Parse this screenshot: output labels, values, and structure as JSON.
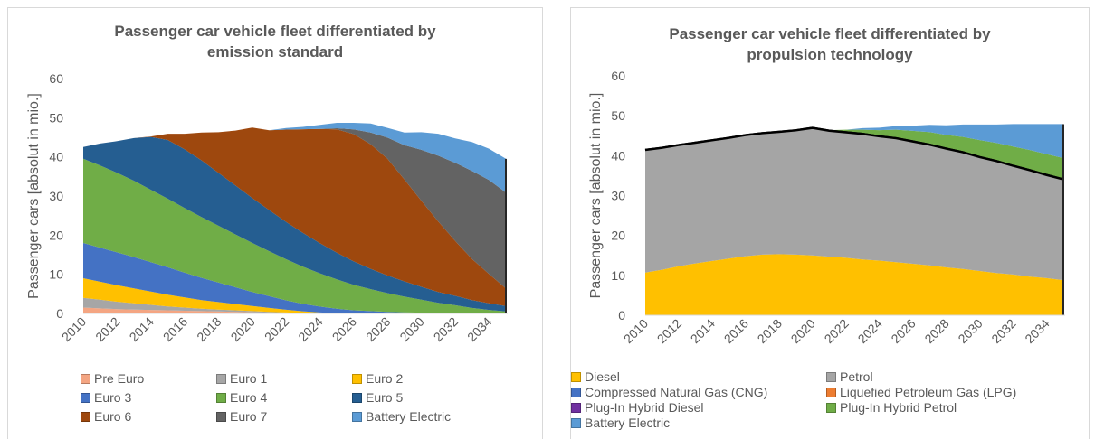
{
  "chart_data": [
    {
      "type": "area",
      "stacked": true,
      "title_lines": [
        "Passenger car vehicle fleet differentiated by",
        "emission standard"
      ],
      "ylabel": "Passenger cars [absolut in mio.]",
      "xlabel": "",
      "ylim": [
        0,
        60
      ],
      "yticks": [
        0,
        10,
        20,
        30,
        40,
        50,
        60
      ],
      "x": [
        2010,
        2011,
        2012,
        2013,
        2014,
        2015,
        2016,
        2017,
        2018,
        2019,
        2020,
        2021,
        2022,
        2023,
        2024,
        2025,
        2026,
        2027,
        2028,
        2029,
        2030,
        2031,
        2032,
        2033,
        2034,
        2035
      ],
      "xticks": [
        "2010",
        "2012",
        "2014",
        "2016",
        "2018",
        "2020",
        "2022",
        "2024",
        "2026",
        "2028",
        "2030",
        "2032",
        "2034"
      ],
      "grid": false,
      "legend_position": "bottom",
      "series": [
        {
          "name": "Pre Euro",
          "color": "#f4a582",
          "values": [
            1.5,
            1.3,
            1.1,
            1.0,
            0.9,
            0.8,
            0.7,
            0.6,
            0.5,
            0.4,
            0.3,
            0.2,
            0.15,
            0.1,
            0.05,
            0,
            0,
            0,
            0,
            0,
            0,
            0,
            0,
            0,
            0,
            0
          ]
        },
        {
          "name": "Euro 1",
          "color": "#a6a6a6",
          "values": [
            2.5,
            2.2,
            1.9,
            1.6,
            1.3,
            1.0,
            0.8,
            0.6,
            0.5,
            0.4,
            0.3,
            0.2,
            0.1,
            0.05,
            0,
            0,
            0,
            0,
            0,
            0,
            0,
            0,
            0,
            0,
            0,
            0
          ]
        },
        {
          "name": "Euro 2",
          "color": "#ffc000",
          "values": [
            5.0,
            4.6,
            4.2,
            3.8,
            3.4,
            3.0,
            2.6,
            2.2,
            1.9,
            1.6,
            1.3,
            1.0,
            0.7,
            0.4,
            0.2,
            0.1,
            0,
            0,
            0,
            0,
            0,
            0,
            0,
            0,
            0,
            0
          ]
        },
        {
          "name": "Euro 3",
          "color": "#4472c4",
          "values": [
            9.0,
            8.7,
            8.4,
            8.0,
            7.5,
            7.0,
            6.3,
            5.7,
            5.0,
            4.3,
            3.6,
            3.0,
            2.4,
            1.9,
            1.5,
            1.1,
            0.8,
            0.6,
            0.4,
            0.3,
            0.2,
            0.1,
            0.1,
            0,
            0,
            0
          ]
        },
        {
          "name": "Euro 4",
          "color": "#70ad47",
          "values": [
            21.5,
            21.0,
            20.3,
            19.5,
            18.5,
            17.5,
            16.5,
            15.5,
            14.5,
            13.5,
            12.5,
            11.5,
            10.5,
            9.5,
            8.5,
            7.5,
            6.5,
            5.6,
            4.8,
            4.0,
            3.3,
            2.6,
            2.0,
            1.4,
            0.9,
            0.5
          ]
        },
        {
          "name": "Euro 5",
          "color": "#255e91",
          "values": [
            3.0,
            5.6,
            8.1,
            10.9,
            13.5,
            15.0,
            15.0,
            14.5,
            13.5,
            12.5,
            11.5,
            10.5,
            9.5,
            8.6,
            7.7,
            6.8,
            6.0,
            5.2,
            4.5,
            3.9,
            3.3,
            2.8,
            2.4,
            2.0,
            1.7,
            1.4
          ]
        },
        {
          "name": "Euro 6",
          "color": "#9e480e",
          "values": [
            0,
            0,
            0,
            0,
            0.1,
            1.6,
            4.0,
            7.1,
            10.4,
            14.0,
            18.0,
            20.4,
            23.6,
            26.5,
            29.2,
            31.5,
            32.5,
            31.8,
            29.8,
            26.0,
            22.0,
            18.0,
            14.0,
            10.5,
            7.5,
            4.5
          ]
        },
        {
          "name": "Euro 7",
          "color": "#636363",
          "values": [
            0,
            0,
            0,
            0,
            0,
            0,
            0,
            0,
            0,
            0,
            0,
            0,
            0,
            0,
            0,
            0.3,
            1.2,
            3.0,
            5.4,
            8.8,
            13.0,
            16.8,
            20.0,
            22.5,
            24.0,
            24.5
          ]
        },
        {
          "name": "Battery Electric",
          "color": "#5b9bd5",
          "values": [
            0,
            0,
            0,
            0,
            0,
            0,
            0,
            0,
            0,
            0,
            0,
            0,
            0.4,
            0.6,
            1.0,
            1.4,
            1.7,
            2.3,
            2.5,
            3.2,
            4.5,
            5.6,
            6.2,
            7.4,
            8.0,
            8.6
          ]
        }
      ]
    },
    {
      "type": "area",
      "stacked": true,
      "title_lines": [
        "Passenger car vehicle fleet differentiated by",
        "propulsion technology"
      ],
      "ylabel": "Passenger cars [absolut in mio.]",
      "xlabel": "",
      "ylim": [
        0,
        60
      ],
      "yticks": [
        0,
        10,
        20,
        30,
        40,
        50,
        60
      ],
      "x": [
        2010,
        2011,
        2012,
        2013,
        2014,
        2015,
        2016,
        2017,
        2018,
        2019,
        2020,
        2021,
        2022,
        2023,
        2024,
        2025,
        2026,
        2027,
        2028,
        2029,
        2030,
        2031,
        2032,
        2033,
        2034,
        2035
      ],
      "xticks": [
        "2010",
        "2012",
        "2014",
        "2016",
        "2018",
        "2020",
        "2022",
        "2024",
        "2026",
        "2028",
        "2030",
        "2032",
        "2034"
      ],
      "grid": false,
      "legend_position": "bottom",
      "series": [
        {
          "name": "Diesel",
          "color": "#ffc000",
          "values": [
            10.7,
            11.4,
            12.3,
            13.0,
            13.6,
            14.2,
            14.8,
            15.2,
            15.3,
            15.2,
            15.0,
            14.7,
            14.4,
            14.0,
            13.7,
            13.3,
            12.9,
            12.5,
            12.0,
            11.6,
            11.1,
            10.6,
            10.2,
            9.7,
            9.3,
            8.8
          ]
        },
        {
          "name": "Petrol",
          "color": "#a5a5a5",
          "values": [
            30.6,
            30.4,
            30.2,
            30.1,
            30.1,
            30.1,
            30.2,
            30.3,
            30.5,
            31.0,
            31.8,
            31.4,
            31.3,
            31.3,
            31.0,
            30.9,
            30.5,
            30.1,
            29.6,
            29.1,
            28.4,
            27.9,
            27.1,
            26.5,
            25.7,
            25.1
          ]
        },
        {
          "name": "Compressed Natural Gas (CNG)",
          "color": "#4472c4",
          "values": [
            0.1,
            0.1,
            0.1,
            0.1,
            0.1,
            0.1,
            0.1,
            0.1,
            0.1,
            0.1,
            0.1,
            0.1,
            0.1,
            0.1,
            0.1,
            0.1,
            0.1,
            0.1,
            0.1,
            0.1,
            0.1,
            0.1,
            0.1,
            0.1,
            0.1,
            0.1
          ]
        },
        {
          "name": "Liquefied Petroleum Gas (LPG)",
          "color": "#ed7d31",
          "values": [
            0.1,
            0.1,
            0.1,
            0.1,
            0.1,
            0.1,
            0.1,
            0.1,
            0.1,
            0.1,
            0.1,
            0.1,
            0.1,
            0.1,
            0.1,
            0.1,
            0.1,
            0.1,
            0.1,
            0.1,
            0.1,
            0.1,
            0.1,
            0.1,
            0.1,
            0.1
          ]
        },
        {
          "name": "Plug-In Hybrid Diesel",
          "color": "#7030a0",
          "values": [
            0,
            0,
            0,
            0,
            0,
            0,
            0,
            0,
            0,
            0,
            0,
            0,
            0,
            0,
            0,
            0,
            0,
            0,
            0,
            0,
            0,
            0,
            0,
            0,
            0,
            0
          ]
        },
        {
          "name": "Plug-In Hybrid Petrol",
          "color": "#70ad47",
          "values": [
            0,
            0,
            0,
            0,
            0,
            0,
            0,
            0,
            0,
            0,
            0,
            0.1,
            0.6,
            1.0,
            1.5,
            2.1,
            2.6,
            3.1,
            3.4,
            3.8,
            4.2,
            4.5,
            4.8,
            5.0,
            5.2,
            5.3
          ]
        },
        {
          "name": "Battery Electric",
          "color": "#5b9bd5",
          "values": [
            0,
            0,
            0,
            0,
            0,
            0,
            0,
            0,
            0,
            0,
            0,
            0,
            0,
            0.4,
            0.6,
            0.9,
            1.3,
            1.8,
            2.4,
            3.1,
            3.9,
            4.6,
            5.6,
            6.5,
            7.5,
            8.5
          ]
        }
      ]
    }
  ]
}
